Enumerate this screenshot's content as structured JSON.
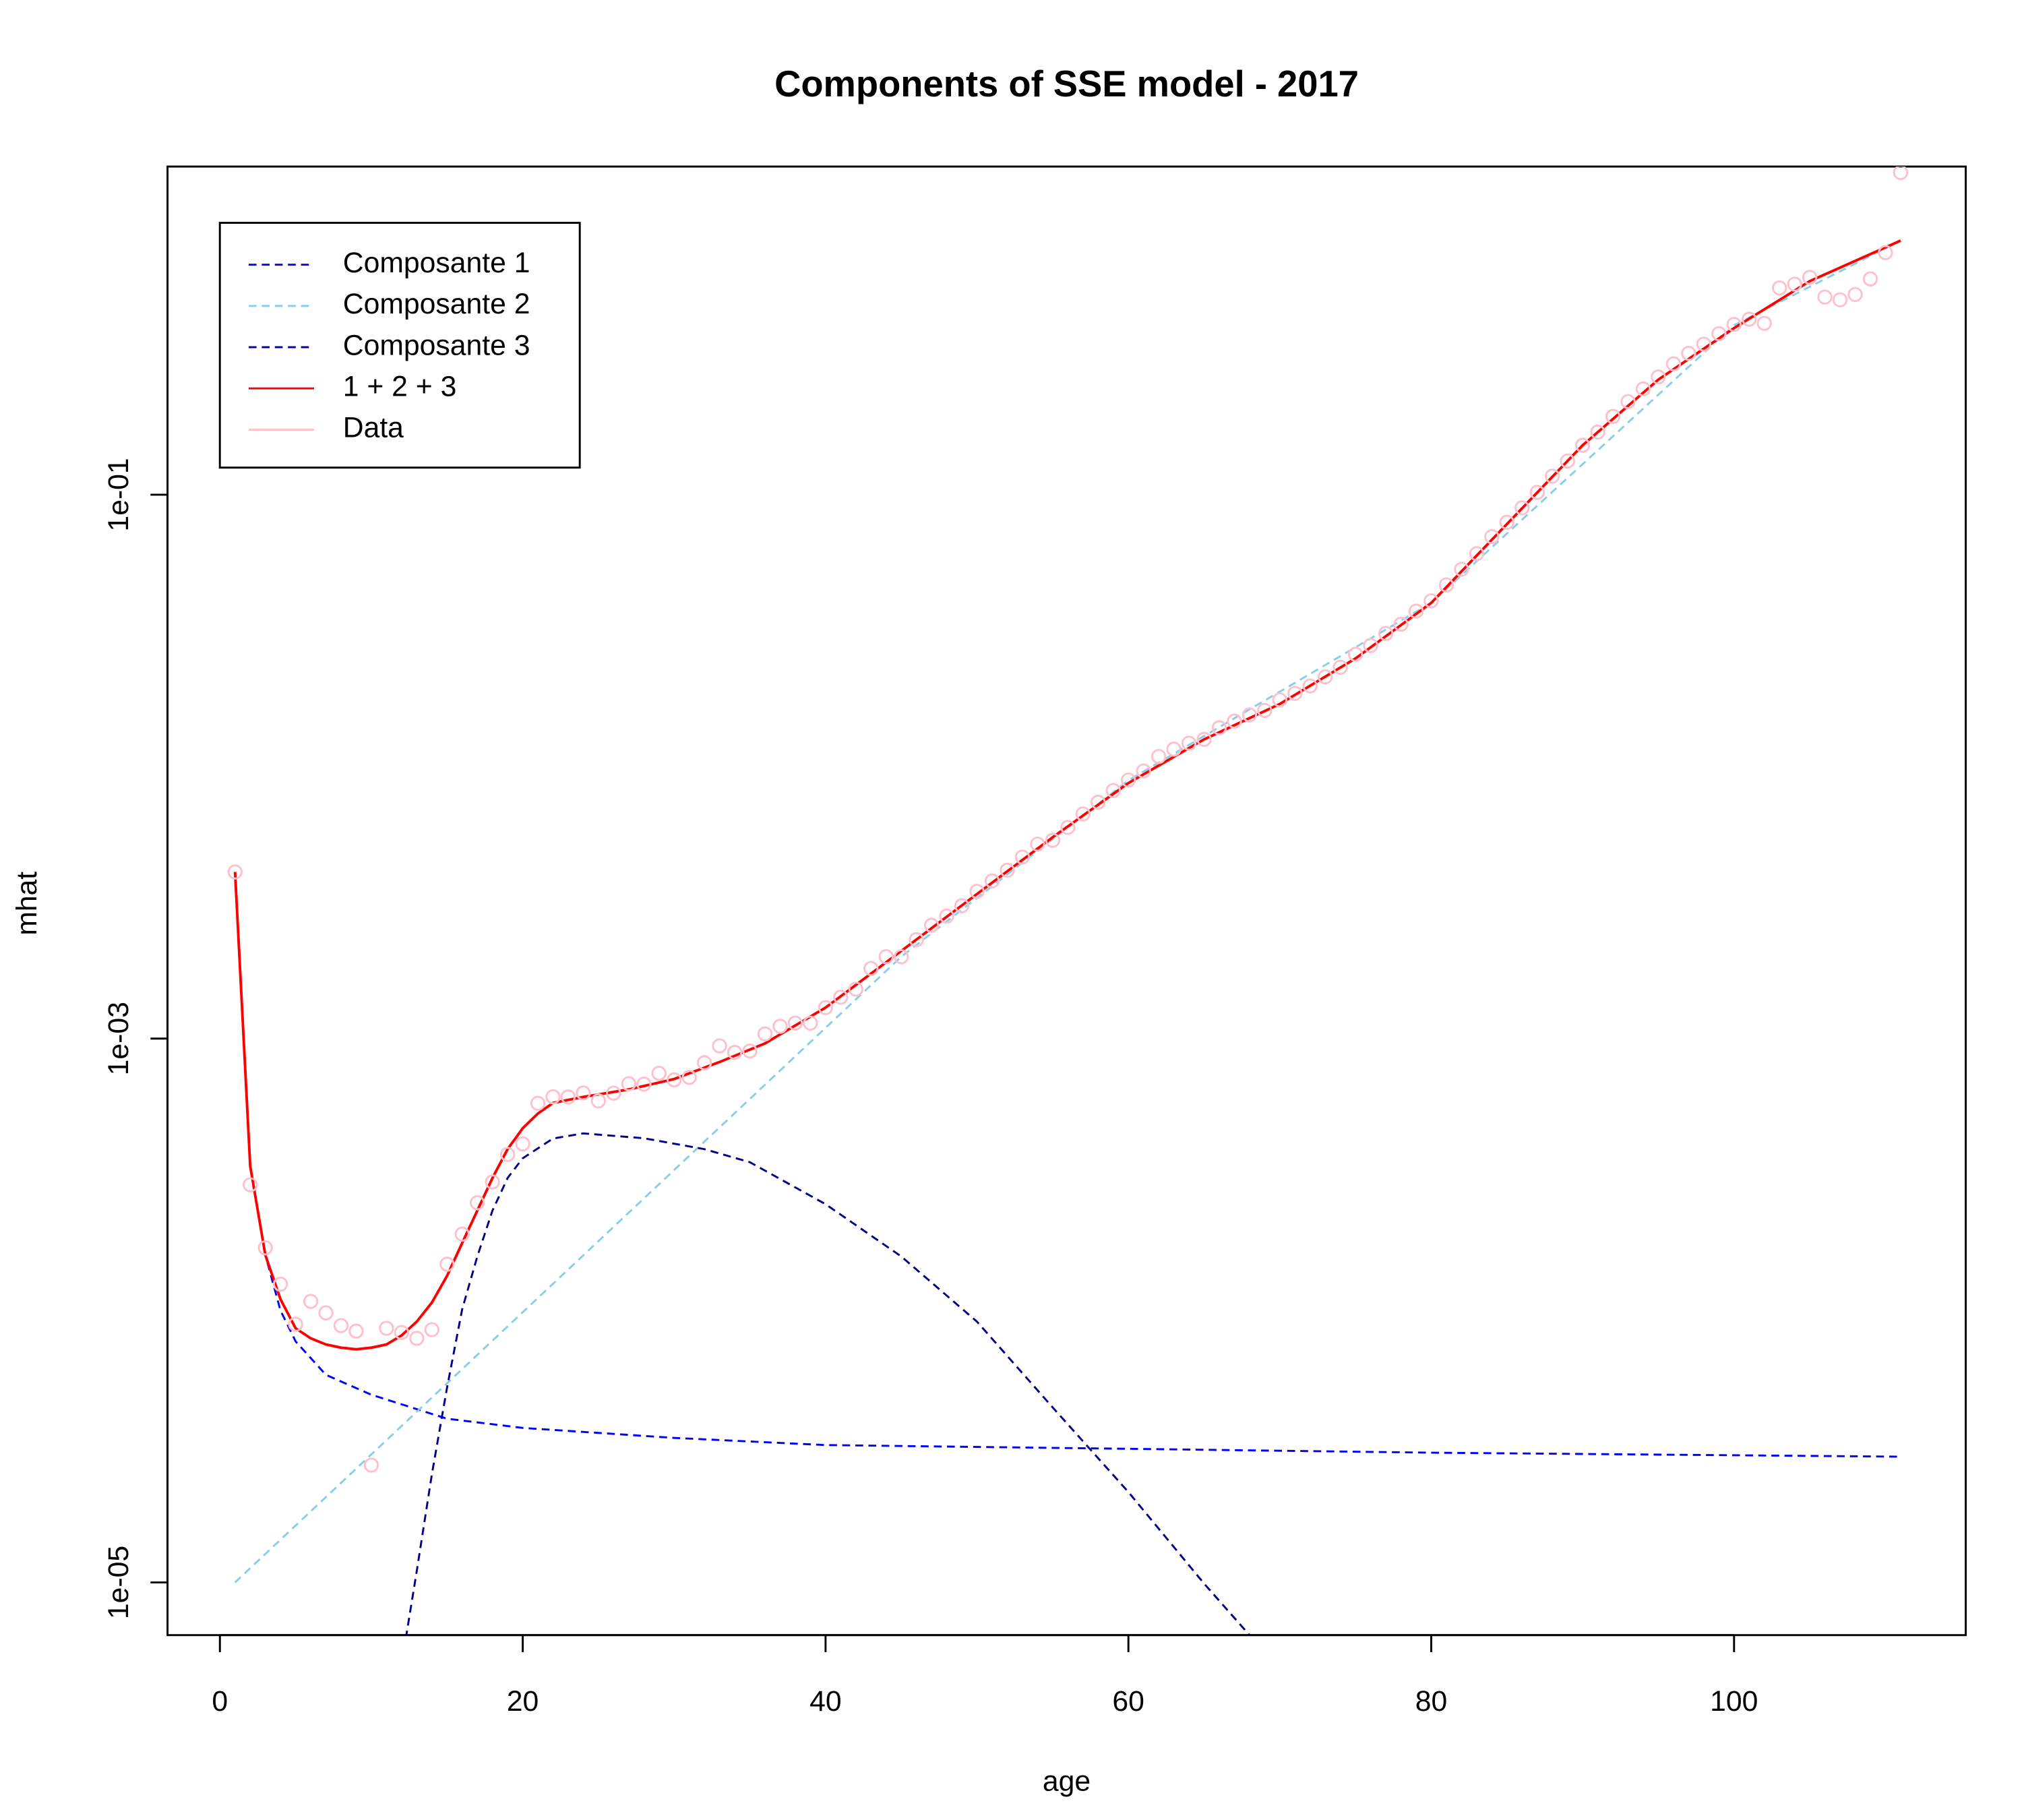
{
  "chart_data": {
    "type": "line",
    "title": "Components of SSE model - 2017",
    "x_label": "age",
    "y_label": "mhat",
    "ylog": true,
    "xlim": [
      -3.46,
      115.3
    ],
    "ylim": [
      6.4e-06,
      1.61
    ],
    "xticks": [
      0,
      20,
      40,
      60,
      80,
      100
    ],
    "yticks": [
      {
        "value": 1e-05,
        "label": "1e-05"
      },
      {
        "value": 0.001,
        "label": "1e-03"
      },
      {
        "value": 0.1,
        "label": "1e-01"
      }
    ],
    "legend": "top-left",
    "series": [
      {
        "name": "Composante 1",
        "color": "#0000ff",
        "dashed": true,
        "x": [
          1,
          2,
          3,
          4,
          5,
          7,
          10,
          15,
          20,
          30,
          40,
          60,
          80,
          111
        ],
        "values": [
          0.0041,
          0.00034,
          0.00016,
          0.0001,
          7.7e-05,
          5.8e-05,
          4.9e-05,
          4e-05,
          3.7e-05,
          3.4e-05,
          3.2e-05,
          3.1e-05,
          3e-05,
          2.9e-05
        ]
      },
      {
        "name": "Composante 2",
        "color": "#87ceeb",
        "dashed": true,
        "x": [
          1,
          45,
          60,
          80,
          100,
          111
        ],
        "values": [
          1e-05,
          0.002,
          0.0089,
          0.04,
          0.42,
          0.86
        ]
      },
      {
        "name": "Composante 3",
        "color": "#00008b",
        "dashed": true,
        "x": [
          12,
          13,
          14,
          15,
          16,
          17,
          18,
          19,
          20,
          22,
          24,
          28,
          32,
          35,
          40,
          45,
          50,
          55,
          60,
          65,
          68
        ],
        "values": [
          5e-06,
          1.1e-05,
          2.5e-05,
          5.2e-05,
          0.000101,
          0.000158,
          0.000233,
          0.000307,
          0.000363,
          0.000429,
          0.000448,
          0.00043,
          0.000392,
          0.000351,
          0.000246,
          0.000158,
          9.1e-05,
          4.4e-05,
          2.15e-05,
          9.9e-06,
          6.4e-06
        ]
      },
      {
        "name": "1 + 2 + 3",
        "color": "#ff0000",
        "dashed": false,
        "x": [
          1,
          2,
          3,
          4,
          5,
          6,
          7,
          8,
          9,
          10,
          11,
          12,
          13,
          14,
          15,
          16,
          17,
          18,
          19,
          20,
          21,
          22,
          24,
          27,
          30,
          33,
          36,
          40,
          45,
          50,
          55,
          60,
          65,
          70,
          75,
          80,
          85,
          90,
          95,
          100,
          105,
          111
        ],
        "values": [
          0.0041,
          0.00034,
          0.00016,
          0.00011,
          8.6e-05,
          7.9e-05,
          7.5e-05,
          7.3e-05,
          7.2e-05,
          7.3e-05,
          7.5e-05,
          8.1e-05,
          9.1e-05,
          0.000107,
          0.000134,
          0.000177,
          0.000233,
          0.000307,
          0.000392,
          0.000468,
          0.00053,
          0.00058,
          0.00061,
          0.00065,
          0.00071,
          0.00082,
          0.00096,
          0.0013,
          0.0021,
          0.0034,
          0.0055,
          0.0087,
          0.0126,
          0.017,
          0.025,
          0.04,
          0.078,
          0.152,
          0.265,
          0.41,
          0.61,
          0.86
        ]
      },
      {
        "name": "Data",
        "color": "#ffc0cb",
        "marker": "circle",
        "x": [
          1,
          2,
          3,
          4,
          5,
          6,
          7,
          8,
          9,
          10,
          11,
          12,
          13,
          14,
          15,
          16,
          17,
          18,
          19,
          20,
          21,
          22,
          23,
          24,
          25,
          26,
          27,
          28,
          29,
          30,
          31,
          32,
          33,
          34,
          35,
          36,
          37,
          38,
          39,
          40,
          41,
          42,
          43,
          44,
          45,
          46,
          47,
          48,
          49,
          50,
          51,
          52,
          53,
          54,
          55,
          56,
          57,
          58,
          59,
          60,
          61,
          62,
          63,
          64,
          65,
          66,
          67,
          68,
          69,
          70,
          71,
          72,
          73,
          74,
          75,
          76,
          77,
          78,
          79,
          80,
          81,
          82,
          83,
          84,
          85,
          86,
          87,
          88,
          89,
          90,
          91,
          92,
          93,
          94,
          95,
          96,
          97,
          98,
          99,
          100,
          101,
          102,
          103,
          104,
          105,
          106,
          107,
          108,
          109,
          110,
          111
        ],
        "values": [
          0.0041,
          0.00029,
          0.00017,
          0.000125,
          8.9e-05,
          0.000108,
          9.8e-05,
          8.8e-05,
          8.4e-05,
          2.7e-05,
          8.6e-05,
          8.3e-05,
          7.9e-05,
          8.5e-05,
          0.000148,
          0.000191,
          0.000249,
          0.000297,
          0.000375,
          0.00041,
          0.000578,
          0.000611,
          0.00061,
          0.000631,
          0.00059,
          0.00063,
          0.000682,
          0.00068,
          0.000745,
          0.000705,
          0.00072,
          0.000815,
          0.00094,
          0.00089,
          0.0009,
          0.00104,
          0.00111,
          0.00114,
          0.00114,
          0.0013,
          0.00142,
          0.00152,
          0.00181,
          0.002,
          0.002,
          0.00231,
          0.00261,
          0.00282,
          0.00308,
          0.00348,
          0.0038,
          0.00416,
          0.00465,
          0.00519,
          0.00536,
          0.00598,
          0.0067,
          0.0074,
          0.00817,
          0.00893,
          0.00964,
          0.0109,
          0.0116,
          0.0122,
          0.0126,
          0.0139,
          0.0147,
          0.0155,
          0.0161,
          0.0176,
          0.0186,
          0.0198,
          0.0214,
          0.0232,
          0.0259,
          0.0279,
          0.0309,
          0.0334,
          0.0373,
          0.0407,
          0.0466,
          0.0532,
          0.0607,
          0.0701,
          0.0792,
          0.0895,
          0.102,
          0.117,
          0.133,
          0.152,
          0.17,
          0.194,
          0.22,
          0.245,
          0.271,
          0.303,
          0.331,
          0.358,
          0.391,
          0.423,
          0.442,
          0.427,
          0.576,
          0.595,
          0.63,
          0.533,
          0.521,
          0.545,
          0.622,
          0.777,
          1.53
        ]
      }
    ]
  }
}
